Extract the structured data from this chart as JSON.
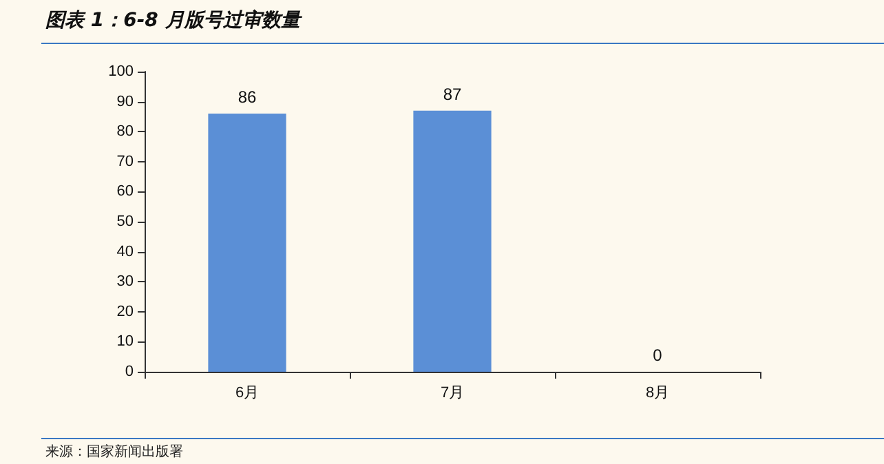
{
  "chart_data": {
    "type": "bar",
    "title": "图表 1：6-8 月版号过审数量",
    "categories": [
      "6月",
      "7月",
      "8月"
    ],
    "values": [
      86,
      87,
      0
    ],
    "color": "#5b8fd6",
    "ylim": [
      0,
      100
    ],
    "yticks": [
      0,
      10,
      20,
      30,
      40,
      50,
      60,
      70,
      80,
      90,
      100
    ],
    "data_labels": true,
    "grid": false,
    "annotations": [
      "来源：国家新闻出版署"
    ]
  }
}
